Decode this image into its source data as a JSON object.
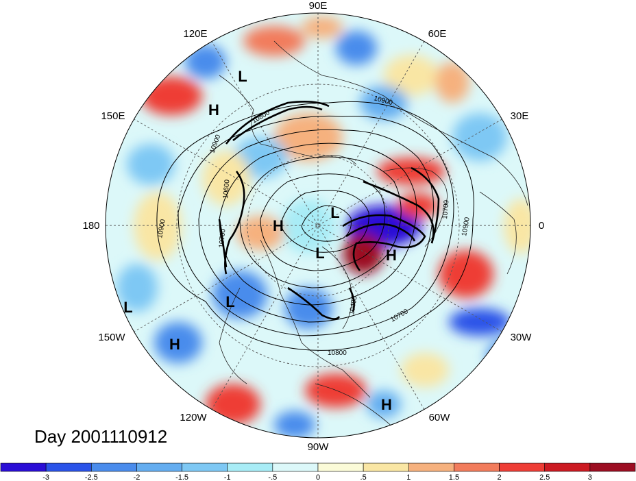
{
  "title": "Day 2001110912",
  "longitude_labels": [
    "90E",
    "60E",
    "30E",
    "0",
    "30W",
    "60W",
    "90W",
    "120W",
    "150W",
    "180",
    "150E",
    "120E"
  ],
  "contour_labels": [
    "10900",
    "10900",
    "10700",
    "10600",
    "10900",
    "10700",
    "10800",
    "10700",
    "10900",
    "10800",
    "10400"
  ],
  "pressure_centers": [
    {
      "text": "L"
    },
    {
      "text": "H"
    },
    {
      "text": "L"
    },
    {
      "text": "H"
    },
    {
      "text": "L"
    },
    {
      "text": "H"
    },
    {
      "text": "L"
    },
    {
      "text": "L"
    },
    {
      "text": "H"
    },
    {
      "text": "H"
    }
  ],
  "colorbar": {
    "ticks": [
      "-3",
      "-2.5",
      "-2",
      "-1.5",
      "-1",
      "-.5",
      "0",
      ".5",
      "1",
      "1.5",
      "2",
      "2.5",
      "3"
    ],
    "colors": [
      "#2a0ed6",
      "#2a53e8",
      "#4a8cec",
      "#64adf0",
      "#7ec8f4",
      "#a8ecf6",
      "#dcf8f9",
      "#fbfbd8",
      "#f9e6a4",
      "#f6b17e",
      "#f27c5c",
      "#ee3d36",
      "#cc1a22",
      "#9c0e22"
    ]
  }
}
